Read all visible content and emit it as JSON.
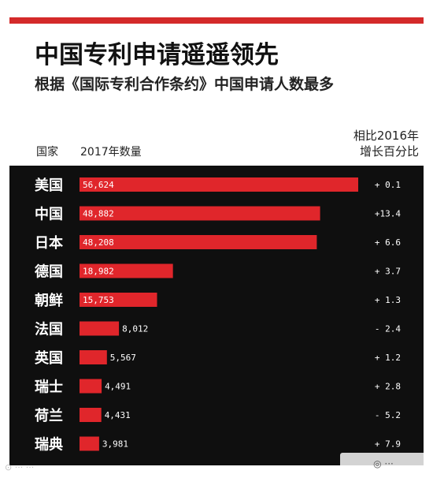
{
  "header": {
    "title": "中国专利申请遥遥领先",
    "subtitle": "根据《国际专利合作条约》中国申请人数最多",
    "col_country": "国家",
    "col_count": "2017年数量",
    "col_change_line1": "相比2016年",
    "col_change_line2": "增长百分比"
  },
  "colors": {
    "accent": "#d42a2a",
    "bar": "#e0262b",
    "panel": "#0f0f0f",
    "text_light": "#ffffff"
  },
  "chart_data": {
    "type": "bar",
    "orientation": "horizontal",
    "title": "中国专利申请遥遥领先",
    "subtitle": "根据《国际专利合作条约》中国申请人数最多",
    "categories": [
      "美国",
      "中国",
      "日本",
      "德国",
      "朝鲜",
      "法国",
      "英国",
      "瑞士",
      "荷兰",
      "瑞典"
    ],
    "values": [
      56624,
      48882,
      48208,
      18982,
      15753,
      8012,
      5567,
      4491,
      4431,
      3981
    ],
    "value_labels": [
      "56,624",
      "48,882",
      "48,208",
      "18,982",
      "15,753",
      "8,012",
      "5,567",
      "4,491",
      "4,431",
      "3,981"
    ],
    "change_labels": [
      "+ 0.1",
      "+13.4",
      "+ 6.6",
      "+ 3.7",
      "+ 1.3",
      "- 2.4",
      "+ 1.2",
      "+ 2.8",
      "- 5.2",
      "+ 7.9"
    ],
    "change_values": [
      0.1,
      13.4,
      6.6,
      3.7,
      1.3,
      -2.4,
      1.2,
      2.8,
      -5.2,
      7.9
    ],
    "xlim": [
      0,
      56624
    ],
    "grid": false,
    "legend": "none"
  }
}
